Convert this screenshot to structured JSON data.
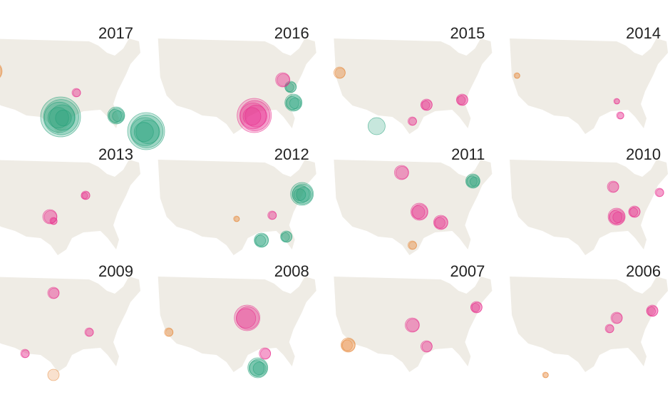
{
  "maps": [
    {
      "year": "2017"
    },
    {
      "year": "2016"
    },
    {
      "year": "2015"
    },
    {
      "year": "2014"
    },
    {
      "year": "2013"
    },
    {
      "year": "2012"
    },
    {
      "year": "2011"
    },
    {
      "year": "2010"
    },
    {
      "year": "2009"
    },
    {
      "year": "2008"
    },
    {
      "year": "2007"
    },
    {
      "year": "2006"
    }
  ]
}
